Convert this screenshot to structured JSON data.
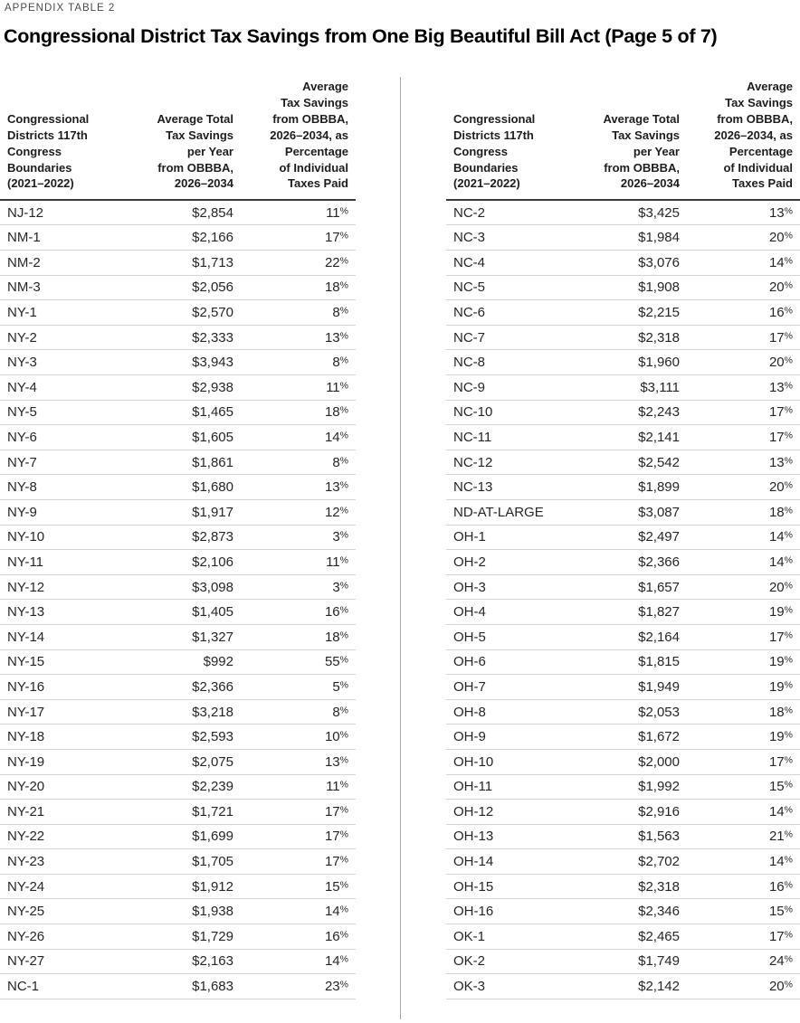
{
  "page": {
    "eyebrow": "APPENDIX TABLE 2",
    "title": "Congressional District Tax Savings from One Big Beautiful Bill Act (Page 5 of 7)"
  },
  "colors": {
    "text": "#1d1d1d",
    "header_rule": "#3a3a3a",
    "row_rule": "#d5d5d5",
    "divider": "#a8a8a8"
  },
  "columns": {
    "district": "Congressional\nDistricts 117th\nCongress\nBoundaries\n(2021–2022)",
    "savings": "Average Total\nTax Savings\nper Year\nfrom OBBBA,\n2026–2034",
    "percent": "Average\nTax Savings\nfrom OBBBA,\n2026–2034, as\nPercentage\nof Individual\nTaxes Paid"
  },
  "left_rows": [
    {
      "district": "NJ-12",
      "savings": "$2,854",
      "percent": "11%"
    },
    {
      "district": "NM-1",
      "savings": "$2,166",
      "percent": "17%"
    },
    {
      "district": "NM-2",
      "savings": "$1,713",
      "percent": "22%"
    },
    {
      "district": "NM-3",
      "savings": "$2,056",
      "percent": "18%"
    },
    {
      "district": "NY-1",
      "savings": "$2,570",
      "percent": "8%"
    },
    {
      "district": "NY-2",
      "savings": "$2,333",
      "percent": "13%"
    },
    {
      "district": "NY-3",
      "savings": "$3,943",
      "percent": "8%"
    },
    {
      "district": "NY-4",
      "savings": "$2,938",
      "percent": "11%"
    },
    {
      "district": "NY-5",
      "savings": "$1,465",
      "percent": "18%"
    },
    {
      "district": "NY-6",
      "savings": "$1,605",
      "percent": "14%"
    },
    {
      "district": "NY-7",
      "savings": "$1,861",
      "percent": "8%"
    },
    {
      "district": "NY-8",
      "savings": "$1,680",
      "percent": "13%"
    },
    {
      "district": "NY-9",
      "savings": "$1,917",
      "percent": "12%"
    },
    {
      "district": "NY-10",
      "savings": "$2,873",
      "percent": "3%"
    },
    {
      "district": "NY-11",
      "savings": "$2,106",
      "percent": "11%"
    },
    {
      "district": "NY-12",
      "savings": "$3,098",
      "percent": "3%"
    },
    {
      "district": "NY-13",
      "savings": "$1,405",
      "percent": "16%"
    },
    {
      "district": "NY-14",
      "savings": "$1,327",
      "percent": "18%"
    },
    {
      "district": "NY-15",
      "savings": "$992",
      "percent": "55%"
    },
    {
      "district": "NY-16",
      "savings": "$2,366",
      "percent": "5%"
    },
    {
      "district": "NY-17",
      "savings": "$3,218",
      "percent": "8%"
    },
    {
      "district": "NY-18",
      "savings": "$2,593",
      "percent": "10%"
    },
    {
      "district": "NY-19",
      "savings": "$2,075",
      "percent": "13%"
    },
    {
      "district": "NY-20",
      "savings": "$2,239",
      "percent": "11%"
    },
    {
      "district": "NY-21",
      "savings": "$1,721",
      "percent": "17%"
    },
    {
      "district": "NY-22",
      "savings": "$1,699",
      "percent": "17%"
    },
    {
      "district": "NY-23",
      "savings": "$1,705",
      "percent": "17%"
    },
    {
      "district": "NY-24",
      "savings": "$1,912",
      "percent": "15%"
    },
    {
      "district": "NY-25",
      "savings": "$1,938",
      "percent": "14%"
    },
    {
      "district": "NY-26",
      "savings": "$1,729",
      "percent": "16%"
    },
    {
      "district": "NY-27",
      "savings": "$2,163",
      "percent": "14%"
    },
    {
      "district": "NC-1",
      "savings": "$1,683",
      "percent": "23%"
    }
  ],
  "right_rows": [
    {
      "district": "NC-2",
      "savings": "$3,425",
      "percent": "13%"
    },
    {
      "district": "NC-3",
      "savings": "$1,984",
      "percent": "20%"
    },
    {
      "district": "NC-4",
      "savings": "$3,076",
      "percent": "14%"
    },
    {
      "district": "NC-5",
      "savings": "$1,908",
      "percent": "20%"
    },
    {
      "district": "NC-6",
      "savings": "$2,215",
      "percent": "16%"
    },
    {
      "district": "NC-7",
      "savings": "$2,318",
      "percent": "17%"
    },
    {
      "district": "NC-8",
      "savings": "$1,960",
      "percent": "20%"
    },
    {
      "district": "NC-9",
      "savings": "$3,111",
      "percent": "13%"
    },
    {
      "district": "NC-10",
      "savings": "$2,243",
      "percent": "17%"
    },
    {
      "district": "NC-11",
      "savings": "$2,141",
      "percent": "17%"
    },
    {
      "district": "NC-12",
      "savings": "$2,542",
      "percent": "13%"
    },
    {
      "district": "NC-13",
      "savings": "$1,899",
      "percent": "20%"
    },
    {
      "district": "ND-AT-LARGE",
      "savings": "$3,087",
      "percent": "18%"
    },
    {
      "district": "OH-1",
      "savings": "$2,497",
      "percent": "14%"
    },
    {
      "district": "OH-2",
      "savings": "$2,366",
      "percent": "14%"
    },
    {
      "district": "OH-3",
      "savings": "$1,657",
      "percent": "20%"
    },
    {
      "district": "OH-4",
      "savings": "$1,827",
      "percent": "19%"
    },
    {
      "district": "OH-5",
      "savings": "$2,164",
      "percent": "17%"
    },
    {
      "district": "OH-6",
      "savings": "$1,815",
      "percent": "19%"
    },
    {
      "district": "OH-7",
      "savings": "$1,949",
      "percent": "19%"
    },
    {
      "district": "OH-8",
      "savings": "$2,053",
      "percent": "18%"
    },
    {
      "district": "OH-9",
      "savings": "$1,672",
      "percent": "19%"
    },
    {
      "district": "OH-10",
      "savings": "$2,000",
      "percent": "17%"
    },
    {
      "district": "OH-11",
      "savings": "$1,992",
      "percent": "15%"
    },
    {
      "district": "OH-12",
      "savings": "$2,916",
      "percent": "14%"
    },
    {
      "district": "OH-13",
      "savings": "$1,563",
      "percent": "21%"
    },
    {
      "district": "OH-14",
      "savings": "$2,702",
      "percent": "14%"
    },
    {
      "district": "OH-15",
      "savings": "$2,318",
      "percent": "16%"
    },
    {
      "district": "OH-16",
      "savings": "$2,346",
      "percent": "15%"
    },
    {
      "district": "OK-1",
      "savings": "$2,465",
      "percent": "17%"
    },
    {
      "district": "OK-2",
      "savings": "$1,749",
      "percent": "24%"
    },
    {
      "district": "OK-3",
      "savings": "$2,142",
      "percent": "20%"
    }
  ]
}
